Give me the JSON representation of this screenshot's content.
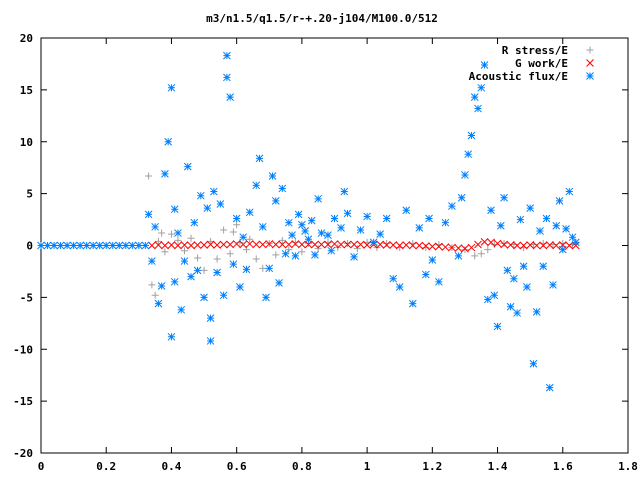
{
  "chart_data": {
    "type": "scatter",
    "title": "m3/n1.5/q1.5/r-+.20-j104/M100.0/512",
    "xlim": [
      0,
      1.8
    ],
    "ylim": [
      -20,
      20
    ],
    "x_ticks": [
      "0",
      "0.2",
      "0.4",
      "0.6",
      "0.8",
      "1",
      "1.2",
      "1.4",
      "1.6",
      "1.8"
    ],
    "y_ticks": [
      "20",
      "15",
      "10",
      "5",
      "0",
      "-5",
      "-10",
      "-15",
      "-20"
    ],
    "x_tick_values": [
      0,
      0.2,
      0.4,
      0.6,
      0.8,
      1.0,
      1.2,
      1.4,
      1.6,
      1.8
    ],
    "y_tick_values": [
      20,
      15,
      10,
      5,
      0,
      -5,
      -10,
      -15,
      -20
    ],
    "grid": false,
    "legend_position": "top-right",
    "series": [
      {
        "name": "R stress/E",
        "marker": "plus",
        "color": "#a0a0a0",
        "points": [
          [
            0.33,
            6.7
          ],
          [
            0.34,
            -3.8
          ],
          [
            0.35,
            -4.8
          ],
          [
            0.36,
            0.4
          ],
          [
            0.37,
            1.2
          ],
          [
            0.38,
            -0.6
          ],
          [
            0.4,
            1.1
          ],
          [
            0.42,
            0.5
          ],
          [
            0.44,
            -0.5
          ],
          [
            0.46,
            0.7
          ],
          [
            0.48,
            -1.2
          ],
          [
            0.5,
            -2.4
          ],
          [
            0.52,
            0.4
          ],
          [
            0.54,
            -1.3
          ],
          [
            0.56,
            1.5
          ],
          [
            0.58,
            -0.8
          ],
          [
            0.59,
            1.3
          ],
          [
            0.6,
            2.0
          ],
          [
            0.61,
            0.3
          ],
          [
            0.63,
            -0.4
          ],
          [
            0.64,
            0.6
          ],
          [
            0.66,
            -1.3
          ],
          [
            0.68,
            -2.2
          ],
          [
            0.7,
            0.2
          ],
          [
            0.72,
            -0.9
          ],
          [
            0.74,
            0.5
          ],
          [
            0.76,
            -0.4
          ],
          [
            0.78,
            0.3
          ],
          [
            0.8,
            -0.6
          ],
          [
            0.82,
            0.2
          ],
          [
            0.85,
            -0.3
          ],
          [
            0.88,
            0.3
          ],
          [
            0.91,
            -0.2
          ],
          [
            0.94,
            0.2
          ],
          [
            0.97,
            -0.3
          ],
          [
            1.0,
            0.3
          ],
          [
            1.03,
            -0.2
          ],
          [
            1.06,
            0.2
          ],
          [
            1.1,
            -0.2
          ],
          [
            1.14,
            0.2
          ],
          [
            1.18,
            -0.2
          ],
          [
            1.22,
            0.1
          ],
          [
            1.26,
            -0.2
          ],
          [
            1.3,
            -0.4
          ],
          [
            1.33,
            -1.0
          ],
          [
            1.35,
            -0.8
          ],
          [
            1.37,
            -0.4
          ],
          [
            1.39,
            0.1
          ],
          [
            1.42,
            0.2
          ],
          [
            1.45,
            0.1
          ],
          [
            1.48,
            -0.2
          ],
          [
            1.51,
            0.1
          ],
          [
            1.54,
            0.2
          ],
          [
            1.57,
            0.1
          ],
          [
            1.6,
            0.2
          ],
          [
            1.63,
            0.1
          ]
        ]
      },
      {
        "name": "G work/E",
        "marker": "cross",
        "color": "#ff0000",
        "points": [
          [
            0.34,
            0.0
          ],
          [
            0.36,
            0.05
          ],
          [
            0.38,
            0.0
          ],
          [
            0.4,
            0.05
          ],
          [
            0.42,
            0.0
          ],
          [
            0.44,
            0.05
          ],
          [
            0.46,
            0.0
          ],
          [
            0.48,
            0.05
          ],
          [
            0.5,
            0.05
          ],
          [
            0.52,
            0.1
          ],
          [
            0.54,
            0.05
          ],
          [
            0.56,
            0.1
          ],
          [
            0.58,
            0.1
          ],
          [
            0.6,
            0.15
          ],
          [
            0.62,
            0.1
          ],
          [
            0.64,
            0.15
          ],
          [
            0.66,
            0.1
          ],
          [
            0.68,
            0.1
          ],
          [
            0.7,
            0.15
          ],
          [
            0.72,
            0.1
          ],
          [
            0.74,
            0.1
          ],
          [
            0.76,
            0.1
          ],
          [
            0.78,
            0.15
          ],
          [
            0.8,
            0.1
          ],
          [
            0.82,
            0.1
          ],
          [
            0.84,
            0.1
          ],
          [
            0.86,
            0.1
          ],
          [
            0.88,
            0.1
          ],
          [
            0.9,
            0.15
          ],
          [
            0.92,
            0.1
          ],
          [
            0.94,
            0.1
          ],
          [
            0.96,
            0.1
          ],
          [
            0.98,
            0.1
          ],
          [
            1.0,
            0.05
          ],
          [
            1.02,
            0.1
          ],
          [
            1.04,
            0.1
          ],
          [
            1.06,
            0.05
          ],
          [
            1.08,
            0.05
          ],
          [
            1.1,
            0.0
          ],
          [
            1.12,
            0.05
          ],
          [
            1.14,
            0.0
          ],
          [
            1.16,
            0.0
          ],
          [
            1.18,
            -0.05
          ],
          [
            1.2,
            -0.1
          ],
          [
            1.22,
            -0.1
          ],
          [
            1.24,
            -0.15
          ],
          [
            1.26,
            -0.2
          ],
          [
            1.28,
            -0.25
          ],
          [
            1.3,
            -0.3
          ],
          [
            1.32,
            -0.2
          ],
          [
            1.34,
            0.1
          ],
          [
            1.36,
            0.35
          ],
          [
            1.38,
            0.3
          ],
          [
            1.4,
            0.2
          ],
          [
            1.42,
            0.1
          ],
          [
            1.44,
            0.05
          ],
          [
            1.46,
            0.0
          ],
          [
            1.48,
            0.0
          ],
          [
            1.5,
            0.05
          ],
          [
            1.52,
            0.0
          ],
          [
            1.54,
            0.0
          ],
          [
            1.56,
            0.05
          ],
          [
            1.58,
            0.0
          ],
          [
            1.6,
            0.05
          ],
          [
            1.62,
            0.0
          ],
          [
            1.64,
            0.0
          ]
        ]
      },
      {
        "name": "Acoustic flux/E",
        "marker": "star",
        "color": "#0080ff",
        "points": [
          [
            0.0,
            0.0
          ],
          [
            0.02,
            0.0
          ],
          [
            0.04,
            0.0
          ],
          [
            0.06,
            0.0
          ],
          [
            0.08,
            0.0
          ],
          [
            0.1,
            0.0
          ],
          [
            0.12,
            0.0
          ],
          [
            0.14,
            0.0
          ],
          [
            0.16,
            0.0
          ],
          [
            0.18,
            0.0
          ],
          [
            0.2,
            0.0
          ],
          [
            0.22,
            0.0
          ],
          [
            0.24,
            0.0
          ],
          [
            0.26,
            0.0
          ],
          [
            0.28,
            0.0
          ],
          [
            0.3,
            0.0
          ],
          [
            0.32,
            0.0
          ],
          [
            0.33,
            3.0
          ],
          [
            0.34,
            -1.5
          ],
          [
            0.35,
            1.8
          ],
          [
            0.36,
            -5.6
          ],
          [
            0.37,
            -3.9
          ],
          [
            0.38,
            6.9
          ],
          [
            0.39,
            10.0
          ],
          [
            0.4,
            15.2
          ],
          [
            0.4,
            -8.8
          ],
          [
            0.41,
            -3.5
          ],
          [
            0.41,
            3.5
          ],
          [
            0.42,
            1.2
          ],
          [
            0.43,
            -6.2
          ],
          [
            0.44,
            -1.5
          ],
          [
            0.45,
            7.6
          ],
          [
            0.46,
            -3.0
          ],
          [
            0.47,
            2.2
          ],
          [
            0.48,
            -2.4
          ],
          [
            0.49,
            4.8
          ],
          [
            0.5,
            -5.0
          ],
          [
            0.51,
            3.6
          ],
          [
            0.52,
            -7.0
          ],
          [
            0.52,
            -9.2
          ],
          [
            0.53,
            5.2
          ],
          [
            0.54,
            -2.6
          ],
          [
            0.55,
            4.0
          ],
          [
            0.56,
            -4.8
          ],
          [
            0.57,
            18.3
          ],
          [
            0.57,
            16.2
          ],
          [
            0.58,
            14.3
          ],
          [
            0.59,
            -1.8
          ],
          [
            0.6,
            2.6
          ],
          [
            0.61,
            -4.0
          ],
          [
            0.62,
            0.8
          ],
          [
            0.63,
            -2.3
          ],
          [
            0.64,
            3.2
          ],
          [
            0.66,
            5.8
          ],
          [
            0.67,
            8.4
          ],
          [
            0.68,
            1.8
          ],
          [
            0.69,
            -5.0
          ],
          [
            0.7,
            -2.2
          ],
          [
            0.71,
            6.7
          ],
          [
            0.72,
            4.3
          ],
          [
            0.73,
            -3.6
          ],
          [
            0.74,
            5.5
          ],
          [
            0.75,
            -0.8
          ],
          [
            0.76,
            2.2
          ],
          [
            0.77,
            1.0
          ],
          [
            0.78,
            -1.0
          ],
          [
            0.79,
            3.0
          ],
          [
            0.8,
            2.0
          ],
          [
            0.81,
            1.4
          ],
          [
            0.82,
            0.6
          ],
          [
            0.83,
            2.4
          ],
          [
            0.84,
            -0.9
          ],
          [
            0.85,
            4.5
          ],
          [
            0.86,
            1.2
          ],
          [
            0.88,
            1.0
          ],
          [
            0.89,
            -0.5
          ],
          [
            0.9,
            2.6
          ],
          [
            0.92,
            1.7
          ],
          [
            0.93,
            5.2
          ],
          [
            0.94,
            3.1
          ],
          [
            0.96,
            -1.1
          ],
          [
            0.98,
            1.5
          ],
          [
            1.0,
            2.8
          ],
          [
            1.02,
            0.3
          ],
          [
            1.04,
            1.1
          ],
          [
            1.06,
            2.6
          ],
          [
            1.08,
            -3.2
          ],
          [
            1.1,
            -4.0
          ],
          [
            1.12,
            3.4
          ],
          [
            1.14,
            -5.6
          ],
          [
            1.16,
            1.7
          ],
          [
            1.18,
            -2.8
          ],
          [
            1.19,
            2.6
          ],
          [
            1.2,
            -1.4
          ],
          [
            1.22,
            -3.5
          ],
          [
            1.24,
            2.2
          ],
          [
            1.26,
            3.8
          ],
          [
            1.28,
            -1.0
          ],
          [
            1.29,
            4.6
          ],
          [
            1.3,
            6.8
          ],
          [
            1.31,
            8.8
          ],
          [
            1.32,
            10.6
          ],
          [
            1.33,
            14.3
          ],
          [
            1.34,
            13.2
          ],
          [
            1.35,
            15.2
          ],
          [
            1.36,
            17.4
          ],
          [
            1.37,
            -5.2
          ],
          [
            1.38,
            3.4
          ],
          [
            1.39,
            -4.8
          ],
          [
            1.4,
            -7.8
          ],
          [
            1.41,
            1.9
          ],
          [
            1.42,
            4.6
          ],
          [
            1.43,
            -2.4
          ],
          [
            1.44,
            -5.9
          ],
          [
            1.45,
            -3.2
          ],
          [
            1.46,
            -6.5
          ],
          [
            1.47,
            2.5
          ],
          [
            1.48,
            -2.0
          ],
          [
            1.49,
            -4.0
          ],
          [
            1.5,
            3.6
          ],
          [
            1.51,
            -11.4
          ],
          [
            1.52,
            -6.4
          ],
          [
            1.53,
            1.4
          ],
          [
            1.54,
            -2.0
          ],
          [
            1.55,
            2.6
          ],
          [
            1.56,
            -13.7
          ],
          [
            1.57,
            -3.8
          ],
          [
            1.58,
            1.9
          ],
          [
            1.59,
            4.3
          ],
          [
            1.6,
            -0.4
          ],
          [
            1.61,
            1.6
          ],
          [
            1.62,
            5.2
          ],
          [
            1.63,
            0.8
          ],
          [
            1.64,
            0.3
          ]
        ]
      }
    ]
  }
}
